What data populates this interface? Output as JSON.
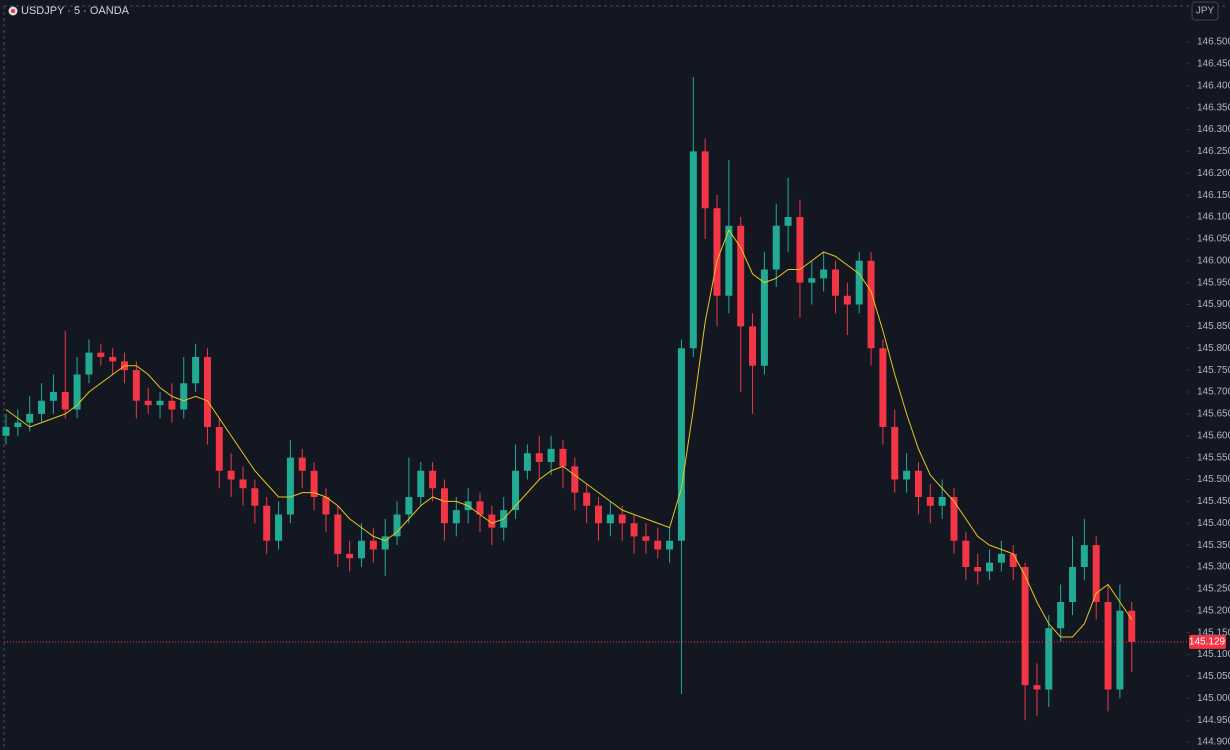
{
  "chart_data": {
    "type": "candlestick",
    "title": "USDJPY · 5 · OANDA",
    "currency": "JPY",
    "up_color": "#22ab94",
    "down_color": "#f23645",
    "ma_color": "#e6c619",
    "last_price": 145.129,
    "ylim": [
      144.9,
      146.5
    ],
    "yticks": [
      {
        "value": 146.5,
        "label": "146.500"
      },
      {
        "value": 146.45,
        "label": "146.450"
      },
      {
        "value": 146.4,
        "label": "146.400"
      },
      {
        "value": 146.35,
        "label": "146.350"
      },
      {
        "value": 146.3,
        "label": "146.300"
      },
      {
        "value": 146.25,
        "label": "146.250"
      },
      {
        "value": 146.2,
        "label": "146.200"
      },
      {
        "value": 146.15,
        "label": "146.150"
      },
      {
        "value": 146.1,
        "label": "146.100"
      },
      {
        "value": 146.05,
        "label": "146.050"
      },
      {
        "value": 146.0,
        "label": "146.000"
      },
      {
        "value": 145.95,
        "label": "145.950"
      },
      {
        "value": 145.9,
        "label": "145.900"
      },
      {
        "value": 145.85,
        "label": "145.850"
      },
      {
        "value": 145.8,
        "label": "145.800"
      },
      {
        "value": 145.75,
        "label": "145.750"
      },
      {
        "value": 145.7,
        "label": "145.700"
      },
      {
        "value": 145.65,
        "label": "145.650"
      },
      {
        "value": 145.6,
        "label": "145.600"
      },
      {
        "value": 145.55,
        "label": "145.550"
      },
      {
        "value": 145.5,
        "label": "145.500"
      },
      {
        "value": 145.45,
        "label": "145.450"
      },
      {
        "value": 145.4,
        "label": "145.400"
      },
      {
        "value": 145.35,
        "label": "145.350"
      },
      {
        "value": 145.3,
        "label": "145.300"
      },
      {
        "value": 145.25,
        "label": "145.250"
      },
      {
        "value": 145.2,
        "label": "145.200"
      },
      {
        "value": 145.15,
        "label": "145.150"
      },
      {
        "value": 145.1,
        "label": "145.100"
      },
      {
        "value": 145.05,
        "label": "145.050"
      },
      {
        "value": 145.0,
        "label": "145.000"
      },
      {
        "value": 144.95,
        "label": "144.950"
      },
      {
        "value": 144.9,
        "label": "144.900"
      }
    ],
    "open": [
      145.6,
      145.62,
      145.63,
      145.65,
      145.68,
      145.7,
      145.66,
      145.74,
      145.79,
      145.78,
      145.77,
      145.75,
      145.68,
      145.67,
      145.68,
      145.66,
      145.72,
      145.78,
      145.62,
      145.52,
      145.5,
      145.48,
      145.44,
      145.36,
      145.42,
      145.55,
      145.52,
      145.46,
      145.42,
      145.33,
      145.32,
      145.36,
      145.34,
      145.37,
      145.42,
      145.46,
      145.52,
      145.48,
      145.4,
      145.43,
      145.45,
      145.42,
      145.39,
      145.43,
      145.52,
      145.56,
      145.54,
      145.57,
      145.53,
      145.47,
      145.44,
      145.4,
      145.42,
      145.4,
      145.37,
      145.36,
      145.34,
      145.36,
      145.8,
      146.25,
      146.12,
      145.92,
      146.08,
      145.85,
      145.76,
      145.98,
      146.08,
      146.1,
      145.95,
      145.96,
      145.98,
      145.92,
      145.9,
      146.0,
      145.8,
      145.62,
      145.5,
      145.52,
      145.46,
      145.44,
      145.46,
      145.36,
      145.3,
      145.29,
      145.31,
      145.33,
      145.3,
      145.03,
      145.02,
      145.16,
      145.22,
      145.3,
      145.35,
      145.22,
      145.02,
      145.2
    ],
    "high": [
      145.65,
      145.66,
      145.69,
      145.72,
      145.74,
      145.84,
      145.78,
      145.82,
      145.81,
      145.8,
      145.79,
      145.77,
      145.71,
      145.7,
      145.72,
      145.78,
      145.81,
      145.8,
      145.64,
      145.56,
      145.53,
      145.5,
      145.46,
      145.45,
      145.59,
      145.57,
      145.54,
      145.48,
      145.44,
      145.36,
      145.4,
      145.39,
      145.41,
      145.45,
      145.55,
      145.54,
      145.54,
      145.5,
      145.46,
      145.48,
      145.47,
      145.44,
      145.46,
      145.58,
      145.58,
      145.6,
      145.6,
      145.59,
      145.55,
      145.49,
      145.46,
      145.45,
      145.44,
      145.42,
      145.4,
      145.39,
      145.39,
      145.82,
      146.42,
      146.28,
      146.15,
      146.23,
      146.1,
      145.88,
      146.02,
      146.13,
      146.19,
      146.14,
      146.0,
      146.02,
      146.0,
      145.95,
      146.02,
      146.02,
      145.82,
      145.66,
      145.56,
      145.54,
      145.49,
      145.5,
      145.48,
      145.38,
      145.33,
      145.34,
      145.36,
      145.35,
      145.31,
      145.08,
      145.19,
      145.26,
      145.37,
      145.41,
      145.37,
      145.26,
      145.26,
      145.22
    ],
    "low": [
      145.58,
      145.6,
      145.61,
      145.63,
      145.65,
      145.64,
      145.64,
      145.72,
      145.76,
      145.74,
      145.72,
      145.64,
      145.65,
      145.64,
      145.63,
      145.64,
      145.7,
      145.58,
      145.48,
      145.46,
      145.44,
      145.4,
      145.33,
      145.34,
      145.4,
      145.48,
      145.43,
      145.38,
      145.3,
      145.29,
      145.3,
      145.31,
      145.28,
      145.35,
      145.4,
      145.44,
      145.45,
      145.36,
      145.37,
      145.4,
      145.38,
      145.35,
      145.36,
      145.41,
      145.5,
      145.5,
      145.51,
      145.48,
      145.43,
      145.4,
      145.36,
      145.37,
      145.36,
      145.33,
      145.33,
      145.32,
      145.31,
      145.01,
      145.78,
      146.05,
      145.85,
      145.88,
      145.7,
      145.65,
      145.74,
      145.94,
      146.02,
      145.87,
      145.9,
      145.93,
      145.88,
      145.83,
      145.88,
      145.76,
      145.58,
      145.47,
      145.47,
      145.42,
      145.4,
      145.41,
      145.33,
      145.27,
      145.26,
      145.27,
      145.29,
      145.27,
      144.95,
      144.96,
      144.98,
      145.13,
      145.19,
      145.27,
      145.18,
      144.97,
      145.0,
      145.06
    ],
    "close": [
      145.62,
      145.63,
      145.65,
      145.68,
      145.7,
      145.66,
      145.74,
      145.79,
      145.78,
      145.77,
      145.75,
      145.68,
      145.67,
      145.68,
      145.66,
      145.72,
      145.78,
      145.62,
      145.52,
      145.5,
      145.48,
      145.44,
      145.36,
      145.42,
      145.55,
      145.52,
      145.46,
      145.42,
      145.33,
      145.32,
      145.36,
      145.34,
      145.37,
      145.42,
      145.46,
      145.52,
      145.48,
      145.4,
      145.43,
      145.45,
      145.42,
      145.39,
      145.43,
      145.52,
      145.56,
      145.54,
      145.57,
      145.53,
      145.47,
      145.44,
      145.4,
      145.42,
      145.4,
      145.37,
      145.36,
      145.34,
      145.36,
      145.8,
      146.25,
      146.12,
      145.92,
      146.08,
      145.85,
      145.76,
      145.98,
      146.08,
      146.1,
      145.95,
      145.96,
      145.98,
      145.92,
      145.9,
      146.0,
      145.8,
      145.62,
      145.5,
      145.52,
      145.46,
      145.44,
      145.46,
      145.36,
      145.3,
      145.29,
      145.31,
      145.33,
      145.3,
      145.03,
      145.02,
      145.16,
      145.22,
      145.3,
      145.35,
      145.22,
      145.02,
      145.2,
      145.129
    ],
    "ma": [
      145.66,
      145.64,
      145.62,
      145.63,
      145.64,
      145.65,
      145.67,
      145.7,
      145.72,
      145.74,
      145.76,
      145.76,
      145.74,
      145.71,
      145.69,
      145.68,
      145.69,
      145.68,
      145.64,
      145.6,
      145.56,
      145.52,
      145.49,
      145.46,
      145.46,
      145.47,
      145.47,
      145.46,
      145.44,
      145.41,
      145.39,
      145.37,
      145.36,
      145.38,
      145.41,
      145.44,
      145.46,
      145.45,
      145.45,
      145.44,
      145.42,
      145.4,
      145.41,
      145.44,
      145.47,
      145.5,
      145.52,
      145.53,
      145.51,
      145.49,
      145.47,
      145.45,
      145.43,
      145.42,
      145.41,
      145.4,
      145.39,
      145.48,
      145.66,
      145.86,
      146.0,
      146.07,
      146.03,
      145.97,
      145.95,
      145.96,
      145.98,
      145.98,
      146.0,
      146.02,
      146.01,
      145.99,
      145.97,
      145.93,
      145.84,
      145.74,
      145.65,
      145.57,
      145.51,
      145.48,
      145.45,
      145.41,
      145.37,
      145.35,
      145.34,
      145.33,
      145.28,
      145.22,
      145.17,
      145.14,
      145.14,
      145.17,
      145.24,
      145.26,
      145.22,
      145.18
    ]
  }
}
